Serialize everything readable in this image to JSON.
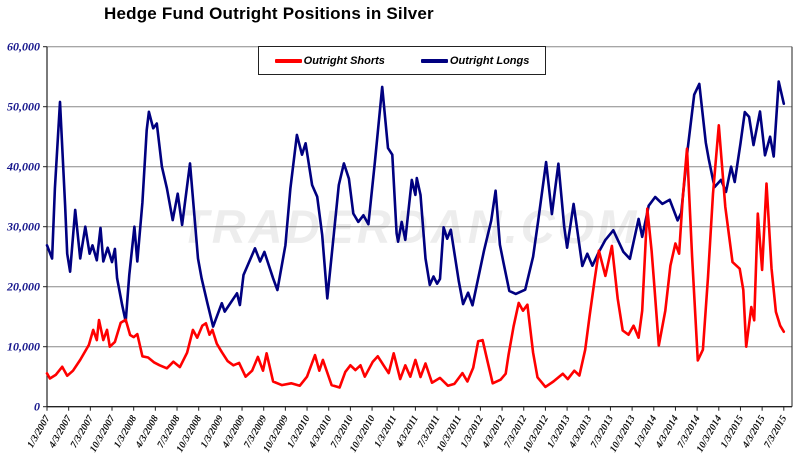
{
  "title": "Hedge Fund Outright Positions in Silver",
  "watermark": "TRADERDAN.COM",
  "colors": {
    "background": "#ffffff",
    "gridline": "#888888",
    "axis": "#222222",
    "y_label": "#16168c",
    "x_label": "#111111",
    "watermark": "#ededed",
    "shorts": "#ff0000",
    "longs": "#000080"
  },
  "legend": {
    "items": [
      {
        "label": "Outright Shorts",
        "color": "#ff0000"
      },
      {
        "label": "Outright Longs",
        "color": "#000080"
      }
    ]
  },
  "chart_data": {
    "type": "line",
    "title": "Hedge Fund Outright Positions in Silver",
    "xlabel": "",
    "ylabel": "",
    "x_unit": "months since 1/3/2007, weekly futures positioning data",
    "x_range": [
      0,
      102
    ],
    "ylim": [
      0,
      60000
    ],
    "grid": "horizontal",
    "legend_position": "top-center",
    "y_axis": {
      "tick_values": [
        0,
        10000,
        20000,
        30000,
        40000,
        50000,
        60000
      ],
      "tick_labels": [
        "0",
        "10,000",
        "20,000",
        "30,000",
        "40,000",
        "50,000",
        "60,000"
      ]
    },
    "x_axis": {
      "tick_labels": [
        "1/3/2007",
        "4/3/2007",
        "7/3/2007",
        "10/3/2007",
        "1/3/2008",
        "4/3/2008",
        "7/3/2008",
        "10/3/2008",
        "1/3/2009",
        "4/3/2009",
        "7/3/2009",
        "10/3/2009",
        "1/3/2010",
        "4/3/2010",
        "7/3/2010",
        "10/3/2010",
        "1/3/2011",
        "4/3/2011",
        "7/3/2011",
        "10/3/2011",
        "1/3/2012",
        "4/3/2012",
        "7/3/2012",
        "10/3/2012",
        "1/3/2013",
        "4/3/2013",
        "7/3/2013",
        "10/3/2013",
        "1/3/2014",
        "4/3/2014",
        "7/3/2014",
        "10/3/2014",
        "1/3/2015",
        "4/3/2015",
        "7/3/2015"
      ]
    },
    "series": [
      {
        "name": "Outright Shorts",
        "color": "#ff0000",
        "points": [
          [
            0,
            5550
          ],
          [
            0.4,
            4700
          ],
          [
            1.2,
            5300
          ],
          [
            2.1,
            6650
          ],
          [
            2.8,
            5150
          ],
          [
            3.6,
            6000
          ],
          [
            4.6,
            7800
          ],
          [
            5.8,
            10300
          ],
          [
            6.4,
            12800
          ],
          [
            6.9,
            11100
          ],
          [
            7.2,
            14450
          ],
          [
            7.8,
            11100
          ],
          [
            8.3,
            12800
          ],
          [
            8.7,
            10000
          ],
          [
            9.4,
            10800
          ],
          [
            10.2,
            14000
          ],
          [
            10.9,
            14500
          ],
          [
            11.5,
            11950
          ],
          [
            12,
            11600
          ],
          [
            12.5,
            12100
          ],
          [
            13.2,
            8400
          ],
          [
            14,
            8200
          ],
          [
            14.8,
            7400
          ],
          [
            15.6,
            6900
          ],
          [
            16.6,
            6400
          ],
          [
            17.5,
            7500
          ],
          [
            18.4,
            6600
          ],
          [
            19.4,
            9000
          ],
          [
            20.2,
            12800
          ],
          [
            20.8,
            11500
          ],
          [
            21.5,
            13500
          ],
          [
            22,
            13900
          ],
          [
            22.5,
            12000
          ],
          [
            22.9,
            12800
          ],
          [
            23.5,
            10500
          ],
          [
            24.2,
            9100
          ],
          [
            25,
            7600
          ],
          [
            25.8,
            6900
          ],
          [
            26.6,
            7300
          ],
          [
            27.5,
            5000
          ],
          [
            28.4,
            6000
          ],
          [
            29.2,
            8300
          ],
          [
            29.9,
            6000
          ],
          [
            30.4,
            8900
          ],
          [
            31.3,
            4200
          ],
          [
            32.5,
            3600
          ],
          [
            33.8,
            3900
          ],
          [
            35,
            3500
          ],
          [
            36,
            5000
          ],
          [
            37.1,
            8600
          ],
          [
            37.7,
            6000
          ],
          [
            38.2,
            7800
          ],
          [
            39.4,
            3600
          ],
          [
            40.5,
            3200
          ],
          [
            41.3,
            5800
          ],
          [
            42,
            6900
          ],
          [
            42.7,
            6100
          ],
          [
            43.4,
            6900
          ],
          [
            44,
            5000
          ],
          [
            45.1,
            7500
          ],
          [
            45.8,
            8400
          ],
          [
            46.8,
            6500
          ],
          [
            47.3,
            5600
          ],
          [
            48,
            8900
          ],
          [
            48.9,
            4600
          ],
          [
            49.6,
            6900
          ],
          [
            50.3,
            5000
          ],
          [
            51,
            7800
          ],
          [
            51.7,
            4950
          ],
          [
            52.4,
            7200
          ],
          [
            53.3,
            4000
          ],
          [
            54.4,
            4800
          ],
          [
            55.5,
            3500
          ],
          [
            56.4,
            3800
          ],
          [
            57.5,
            5600
          ],
          [
            58.2,
            4200
          ],
          [
            59,
            6500
          ],
          [
            59.7,
            10900
          ],
          [
            60.3,
            11100
          ],
          [
            61,
            7500
          ],
          [
            61.7,
            3900
          ],
          [
            62.8,
            4500
          ],
          [
            63.5,
            5500
          ],
          [
            63.9,
            8700
          ],
          [
            64.6,
            13400
          ],
          [
            65.3,
            17300
          ],
          [
            65.9,
            16000
          ],
          [
            66.5,
            17000
          ],
          [
            67.3,
            9000
          ],
          [
            67.9,
            4900
          ],
          [
            69,
            3300
          ],
          [
            70.1,
            4200
          ],
          [
            71.4,
            5500
          ],
          [
            72.1,
            4600
          ],
          [
            73,
            6000
          ],
          [
            73.7,
            5200
          ],
          [
            74.5,
            9500
          ],
          [
            75.1,
            15000
          ],
          [
            75.8,
            21000
          ],
          [
            76.4,
            26000
          ],
          [
            77.3,
            21800
          ],
          [
            78.2,
            26800
          ],
          [
            79,
            18000
          ],
          [
            79.7,
            12700
          ],
          [
            80.5,
            12000
          ],
          [
            81.2,
            13500
          ],
          [
            81.9,
            11500
          ],
          [
            82.4,
            16000
          ],
          [
            83.1,
            33000
          ],
          [
            83.7,
            26000
          ],
          [
            84,
            21300
          ],
          [
            84.7,
            10200
          ],
          [
            85.6,
            16000
          ],
          [
            86.3,
            23500
          ],
          [
            87,
            27200
          ],
          [
            87.5,
            25500
          ],
          [
            88,
            34700
          ],
          [
            88.6,
            43000
          ],
          [
            89.3,
            25000
          ],
          [
            90.1,
            7700
          ],
          [
            90.8,
            9500
          ],
          [
            91.5,
            21600
          ],
          [
            92.2,
            35500
          ],
          [
            93,
            46900
          ],
          [
            93.9,
            33300
          ],
          [
            94.9,
            24100
          ],
          [
            95.9,
            23000
          ],
          [
            96.4,
            19450
          ],
          [
            96.8,
            10000
          ],
          [
            97.5,
            16600
          ],
          [
            97.9,
            14400
          ],
          [
            98.4,
            32200
          ],
          [
            99,
            22800
          ],
          [
            99.6,
            37200
          ],
          [
            100.3,
            23100
          ],
          [
            100.9,
            15800
          ],
          [
            101.5,
            13500
          ],
          [
            102,
            12500
          ]
        ]
      },
      {
        "name": "Outright Longs",
        "color": "#000080",
        "points": [
          [
            0,
            26900
          ],
          [
            0.7,
            24700
          ],
          [
            1.1,
            36400
          ],
          [
            1.8,
            50800
          ],
          [
            2.5,
            33600
          ],
          [
            2.8,
            25500
          ],
          [
            3.2,
            22500
          ],
          [
            3.9,
            32800
          ],
          [
            4.6,
            24700
          ],
          [
            5.3,
            30000
          ],
          [
            5.9,
            25500
          ],
          [
            6.3,
            26900
          ],
          [
            6.9,
            24400
          ],
          [
            7.4,
            29800
          ],
          [
            7.8,
            24200
          ],
          [
            8.4,
            26500
          ],
          [
            9,
            24100
          ],
          [
            9.4,
            26300
          ],
          [
            9.7,
            21400
          ],
          [
            10.4,
            17000
          ],
          [
            10.9,
            14200
          ],
          [
            11.4,
            22000
          ],
          [
            12.1,
            30000
          ],
          [
            12.5,
            24200
          ],
          [
            13.2,
            34000
          ],
          [
            13.8,
            46100
          ],
          [
            14.1,
            49150
          ],
          [
            14.7,
            46400
          ],
          [
            15.2,
            47200
          ],
          [
            15.9,
            40000
          ],
          [
            16.6,
            36400
          ],
          [
            17.4,
            31100
          ],
          [
            18.1,
            35500
          ],
          [
            18.7,
            30300
          ],
          [
            19.8,
            40550
          ],
          [
            20.9,
            24700
          ],
          [
            21.4,
            21400
          ],
          [
            22.2,
            17250
          ],
          [
            23,
            13350
          ],
          [
            24.2,
            17250
          ],
          [
            24.6,
            15850
          ],
          [
            26.3,
            18900
          ],
          [
            26.7,
            16950
          ],
          [
            27.2,
            21950
          ],
          [
            28.8,
            26400
          ],
          [
            29.5,
            24200
          ],
          [
            30.1,
            25800
          ],
          [
            31.3,
            21400
          ],
          [
            31.9,
            19450
          ],
          [
            33,
            26900
          ],
          [
            33.7,
            36400
          ],
          [
            34.6,
            45300
          ],
          [
            35.3,
            42000
          ],
          [
            35.8,
            43900
          ],
          [
            36.7,
            36950
          ],
          [
            37.4,
            35000
          ],
          [
            38.1,
            28600
          ],
          [
            38.8,
            18050
          ],
          [
            40.4,
            36950
          ],
          [
            41.1,
            40550
          ],
          [
            41.8,
            38000
          ],
          [
            42.4,
            32200
          ],
          [
            43.1,
            30800
          ],
          [
            43.8,
            31900
          ],
          [
            44.5,
            30400
          ],
          [
            45.4,
            40800
          ],
          [
            46.4,
            53300
          ],
          [
            47.2,
            43100
          ],
          [
            47.8,
            42000
          ],
          [
            48.4,
            28900
          ],
          [
            48.6,
            27500
          ],
          [
            49.1,
            30800
          ],
          [
            49.6,
            27800
          ],
          [
            50.5,
            37800
          ],
          [
            51,
            35300
          ],
          [
            51.2,
            38100
          ],
          [
            51.7,
            35300
          ],
          [
            52.4,
            24700
          ],
          [
            53,
            20300
          ],
          [
            53.5,
            21700
          ],
          [
            54,
            20500
          ],
          [
            54.4,
            21300
          ],
          [
            54.9,
            29900
          ],
          [
            55.4,
            28000
          ],
          [
            55.9,
            29500
          ],
          [
            57,
            21000
          ],
          [
            57.6,
            17100
          ],
          [
            58.3,
            19000
          ],
          [
            58.9,
            16900
          ],
          [
            60.5,
            26000
          ],
          [
            61.5,
            31000
          ],
          [
            62.1,
            36000
          ],
          [
            62.7,
            27000
          ],
          [
            63.2,
            24000
          ],
          [
            64,
            19300
          ],
          [
            64.9,
            18800
          ],
          [
            66.2,
            19500
          ],
          [
            67.3,
            25000
          ],
          [
            68,
            31000
          ],
          [
            69.1,
            40770
          ],
          [
            69.9,
            32100
          ],
          [
            70.8,
            40500
          ],
          [
            71.6,
            30000
          ],
          [
            72,
            26500
          ],
          [
            72.9,
            33800
          ],
          [
            74.1,
            23450
          ],
          [
            74.8,
            25500
          ],
          [
            75.5,
            23500
          ],
          [
            76.4,
            25800
          ],
          [
            77.3,
            27800
          ],
          [
            78.4,
            29400
          ],
          [
            79.8,
            25800
          ],
          [
            80.7,
            24650
          ],
          [
            81.9,
            31300
          ],
          [
            82.4,
            28300
          ],
          [
            83.3,
            33500
          ],
          [
            84.2,
            34950
          ],
          [
            85.2,
            33800
          ],
          [
            86.2,
            34500
          ],
          [
            87.3,
            31050
          ],
          [
            87.8,
            32300
          ],
          [
            88.7,
            43000
          ],
          [
            89.6,
            52000
          ],
          [
            90.3,
            53800
          ],
          [
            91.2,
            44000
          ],
          [
            91.6,
            41300
          ],
          [
            92.4,
            36600
          ],
          [
            93.3,
            37800
          ],
          [
            94,
            35800
          ],
          [
            94.7,
            40000
          ],
          [
            95.2,
            37450
          ],
          [
            96,
            43900
          ],
          [
            96.6,
            49100
          ],
          [
            97.2,
            48300
          ],
          [
            97.8,
            43600
          ],
          [
            98.7,
            49200
          ],
          [
            99.4,
            41900
          ],
          [
            100.1,
            45000
          ],
          [
            100.6,
            41700
          ],
          [
            101.3,
            54200
          ],
          [
            102,
            50500
          ]
        ]
      }
    ]
  }
}
